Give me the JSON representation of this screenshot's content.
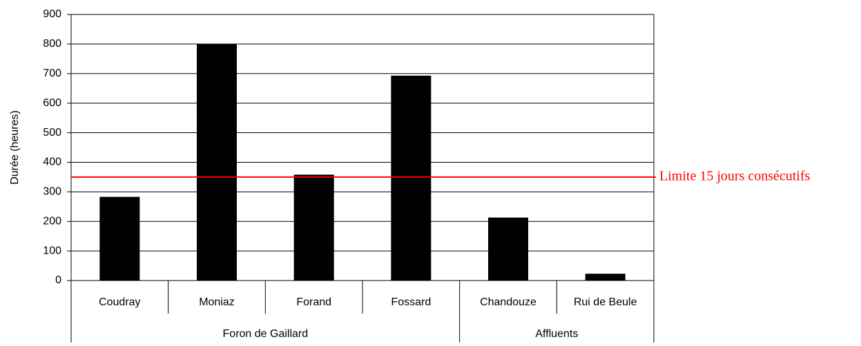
{
  "chart_data": {
    "type": "bar",
    "y_label": "Durée (heures)",
    "categories": [
      "Coudray",
      "Moniaz",
      "Forand",
      "Fossard",
      "Chandouze",
      "Rui de Beule"
    ],
    "category_groups": [
      "Foron de Gaillard",
      "Foron de Gaillard",
      "Foron de Gaillard",
      "Foron de Gaillard",
      "Affluents",
      "Affluents"
    ],
    "values": [
      283,
      800,
      358,
      693,
      213,
      23
    ],
    "color": "#000000",
    "ylim": [
      0,
      900
    ],
    "yticks": [
      0,
      100,
      200,
      300,
      400,
      500,
      600,
      700,
      800,
      900
    ],
    "grid": true,
    "reference_line": {
      "value": 350,
      "label": "Limite 15 jours consécutifs",
      "color": "#ff0000"
    }
  }
}
